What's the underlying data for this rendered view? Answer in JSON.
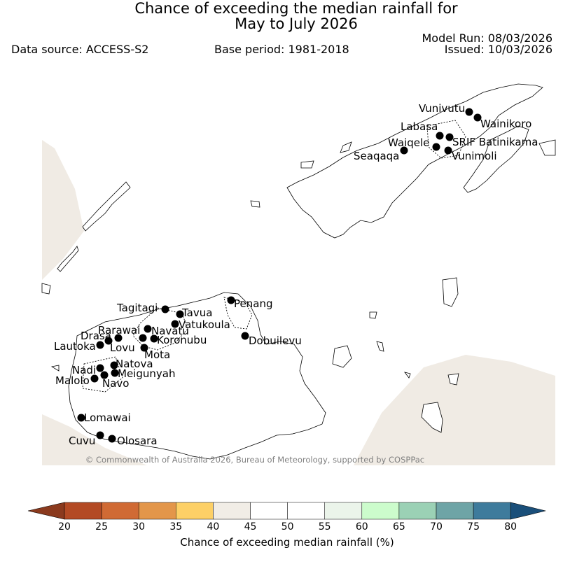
{
  "header": {
    "title_line1": "Chance of exceeding the median rainfall for",
    "title_line2": "May to July 2026",
    "data_source": "Data source: ACCESS-S2",
    "base_period": "Base period: 1981-2018",
    "model_run": "Model Run: 08/03/2026",
    "issued": "Issued: 10/03/2026"
  },
  "map": {
    "copyright": "© Commonwealth of Australia 2026, Bureau of Meteorology, supported by COSPPac",
    "land_color": "#f0ebe4",
    "sea_color": "#ffffff",
    "stations": [
      {
        "name": "Vunivutu"
      },
      {
        "name": "Wainikoro"
      },
      {
        "name": "Labasa"
      },
      {
        "name": "SRIF Batinikama"
      },
      {
        "name": "Waiqele"
      },
      {
        "name": "Seaqaqa"
      },
      {
        "name": "Vunimoli"
      },
      {
        "name": "Tagitagi"
      },
      {
        "name": "Penang"
      },
      {
        "name": "Tavua"
      },
      {
        "name": "Vatukoula"
      },
      {
        "name": "Rarawai"
      },
      {
        "name": "Navatu"
      },
      {
        "name": "Drasa"
      },
      {
        "name": "Koronubu"
      },
      {
        "name": "Dobuilevu"
      },
      {
        "name": "Lautoka"
      },
      {
        "name": "Lovu"
      },
      {
        "name": "Mota"
      },
      {
        "name": "Nadi"
      },
      {
        "name": "Natova"
      },
      {
        "name": "Meigunyah"
      },
      {
        "name": "Malolo"
      },
      {
        "name": "Navo"
      },
      {
        "name": "Lomawai"
      },
      {
        "name": "Cuvu"
      },
      {
        "name": "Olosara"
      }
    ]
  },
  "colorbar": {
    "label": "Chance of exceeding median rainfall (%)",
    "ticks": [
      "20",
      "25",
      "30",
      "35",
      "40",
      "45",
      "50",
      "55",
      "60",
      "65",
      "70",
      "75",
      "80"
    ],
    "low_extend_color": "#8b3a1e",
    "high_extend_color": "#1a4f7a",
    "colors": [
      "#b34a24",
      "#d06a34",
      "#e3964a",
      "#fdd066",
      "#f1ede6",
      "#ffffff",
      "#ffffff",
      "#ebf4ea",
      "#ccfccc",
      "#9bd1b5",
      "#6ea4a6",
      "#3e7b9c"
    ]
  }
}
